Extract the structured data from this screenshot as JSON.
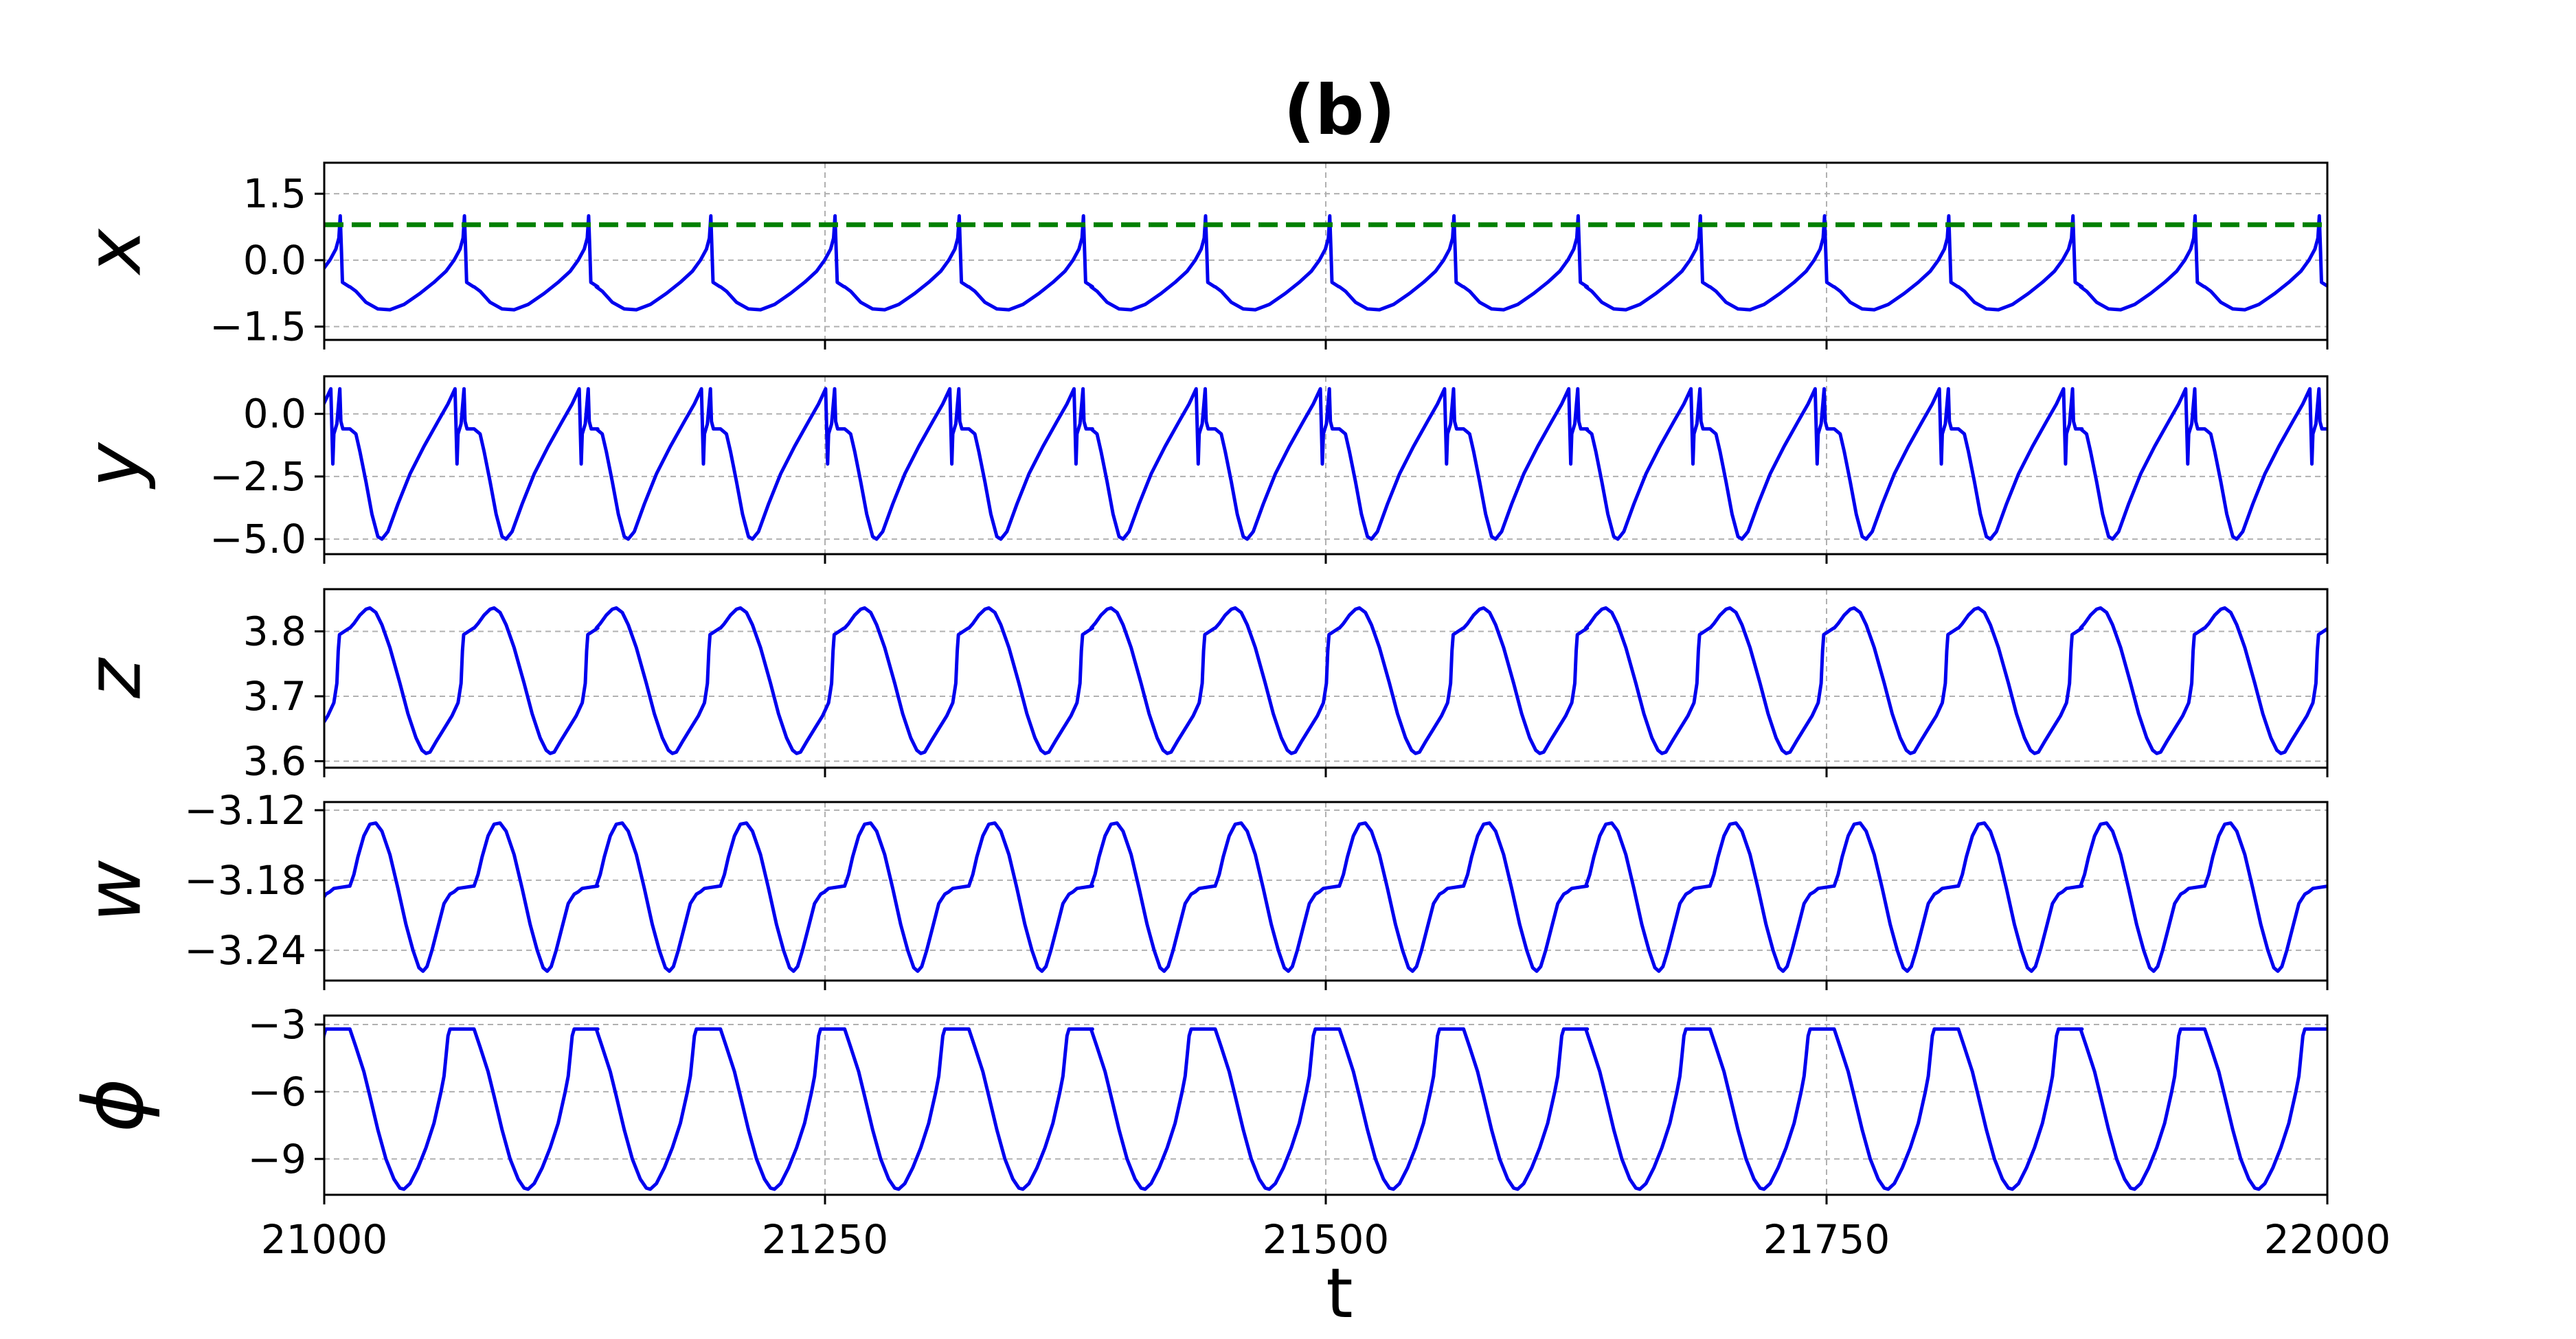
{
  "chart_data": {
    "type": "line",
    "title": "(b)",
    "xlabel": "t",
    "xlim": [
      21000,
      22000
    ],
    "xticks": [
      21000,
      21250,
      21500,
      21750,
      22000
    ],
    "xtick_labels": [
      "21000",
      "21250",
      "21500",
      "21750",
      "22000"
    ],
    "period": 61.75,
    "spike_times": [
      21008,
      21070,
      21132,
      21193,
      21255,
      21317,
      21379,
      21440,
      21502,
      21564,
      21626,
      21687,
      21749,
      21811,
      21873,
      21934,
      21996
    ],
    "grid": true,
    "line_color": "#0000ee",
    "panels": [
      {
        "ylabel": "x",
        "ylim": [
          -1.8,
          2.2
        ],
        "yticks": [
          -1.5,
          0.0,
          1.5
        ],
        "ytick_labels": [
          "−1.5",
          "0.0",
          "1.5"
        ],
        "threshold": {
          "value": 0.8,
          "color": "#008000",
          "style": "dashed"
        },
        "waveform": [
          [
            0,
            -0.6
          ],
          [
            3,
            -0.7
          ],
          [
            8,
            -0.95
          ],
          [
            14,
            -1.1
          ],
          [
            20,
            -1.12
          ],
          [
            27,
            -1.0
          ],
          [
            35,
            -0.75
          ],
          [
            42,
            -0.5
          ],
          [
            48,
            -0.25
          ],
          [
            52,
            0.0
          ],
          [
            55,
            0.25
          ],
          [
            56.5,
            0.5
          ],
          [
            57.2,
            1.0
          ],
          [
            57.8,
            0.2
          ],
          [
            58.3,
            -0.5
          ],
          [
            61.75,
            -0.6
          ]
        ]
      },
      {
        "ylabel": "y",
        "ylim": [
          -5.6,
          1.5
        ],
        "yticks": [
          -5.0,
          -2.5,
          0.0
        ],
        "ytick_labels": [
          "−5.0",
          "−2.5",
          "0.0"
        ],
        "waveform": [
          [
            0,
            -0.6
          ],
          [
            3,
            -0.8
          ],
          [
            5,
            -1.5
          ],
          [
            8,
            -2.7
          ],
          [
            11,
            -4.0
          ],
          [
            14,
            -4.9
          ],
          [
            16,
            -5.0
          ],
          [
            19,
            -4.7
          ],
          [
            24,
            -3.6
          ],
          [
            30,
            -2.4
          ],
          [
            37,
            -1.3
          ],
          [
            44,
            -0.3
          ],
          [
            49,
            0.4
          ],
          [
            52.5,
            1.0
          ],
          [
            53.5,
            -2.0
          ],
          [
            54,
            -0.8
          ],
          [
            55.5,
            -0.4
          ],
          [
            57,
            1.0
          ],
          [
            57.5,
            -0.3
          ],
          [
            58.5,
            -0.6
          ],
          [
            61.75,
            -0.6
          ]
        ]
      },
      {
        "ylabel": "z",
        "ylim": [
          3.59,
          3.865
        ],
        "yticks": [
          3.6,
          3.7,
          3.8
        ],
        "ytick_labels": [
          "3.6",
          "3.7",
          "3.8"
        ],
        "waveform": [
          [
            0,
            3.805
          ],
          [
            2,
            3.812
          ],
          [
            5,
            3.825
          ],
          [
            8,
            3.834
          ],
          [
            10,
            3.836
          ],
          [
            13,
            3.829
          ],
          [
            16,
            3.81
          ],
          [
            20,
            3.775
          ],
          [
            25,
            3.72
          ],
          [
            29,
            3.673
          ],
          [
            33,
            3.636
          ],
          [
            36,
            3.617
          ],
          [
            38,
            3.612
          ],
          [
            40,
            3.614
          ],
          [
            43,
            3.63
          ],
          [
            47,
            3.65
          ],
          [
            51,
            3.67
          ],
          [
            54,
            3.69
          ],
          [
            55.5,
            3.72
          ],
          [
            56.2,
            3.77
          ],
          [
            56.8,
            3.795
          ],
          [
            61.75,
            3.805
          ]
        ]
      },
      {
        "ylabel": "w",
        "ylim": [
          -3.266,
          -3.113
        ],
        "yticks": [
          -3.24,
          -3.18,
          -3.12
        ],
        "ytick_labels": [
          "−3.24",
          "−3.18",
          "−3.12"
        ],
        "waveform": [
          [
            0,
            -3.185
          ],
          [
            2,
            -3.175
          ],
          [
            4,
            -3.16
          ],
          [
            7,
            -3.142
          ],
          [
            10,
            -3.132
          ],
          [
            13,
            -3.131
          ],
          [
            16,
            -3.138
          ],
          [
            20,
            -3.158
          ],
          [
            24,
            -3.187
          ],
          [
            28,
            -3.218
          ],
          [
            31.5,
            -3.24
          ],
          [
            34.5,
            -3.255
          ],
          [
            36.5,
            -3.258
          ],
          [
            38.5,
            -3.254
          ],
          [
            41,
            -3.24
          ],
          [
            44,
            -3.22
          ],
          [
            47,
            -3.2
          ],
          [
            50,
            -3.192
          ],
          [
            52,
            -3.19
          ],
          [
            54,
            -3.187
          ],
          [
            61.75,
            -3.185
          ]
        ]
      },
      {
        "ylabel": "ϕ",
        "ylim": [
          -10.6,
          -2.6
        ],
        "yticks": [
          -9,
          -6,
          -3
        ],
        "ytick_labels": [
          "−9",
          "−6",
          "−3"
        ],
        "waveform": [
          [
            0,
            -3.2
          ],
          [
            3,
            -4.0
          ],
          [
            7,
            -5.1
          ],
          [
            10,
            -6.2
          ],
          [
            14,
            -7.7
          ],
          [
            18,
            -9.0
          ],
          [
            22,
            -9.9
          ],
          [
            25,
            -10.3
          ],
          [
            27,
            -10.35
          ],
          [
            30,
            -10.1
          ],
          [
            34,
            -9.4
          ],
          [
            38,
            -8.5
          ],
          [
            42,
            -7.4
          ],
          [
            45.5,
            -6.0
          ],
          [
            47,
            -5.3
          ],
          [
            48,
            -4.4
          ],
          [
            49,
            -3.5
          ],
          [
            50,
            -3.2
          ],
          [
            61.75,
            -3.2
          ]
        ]
      }
    ]
  }
}
